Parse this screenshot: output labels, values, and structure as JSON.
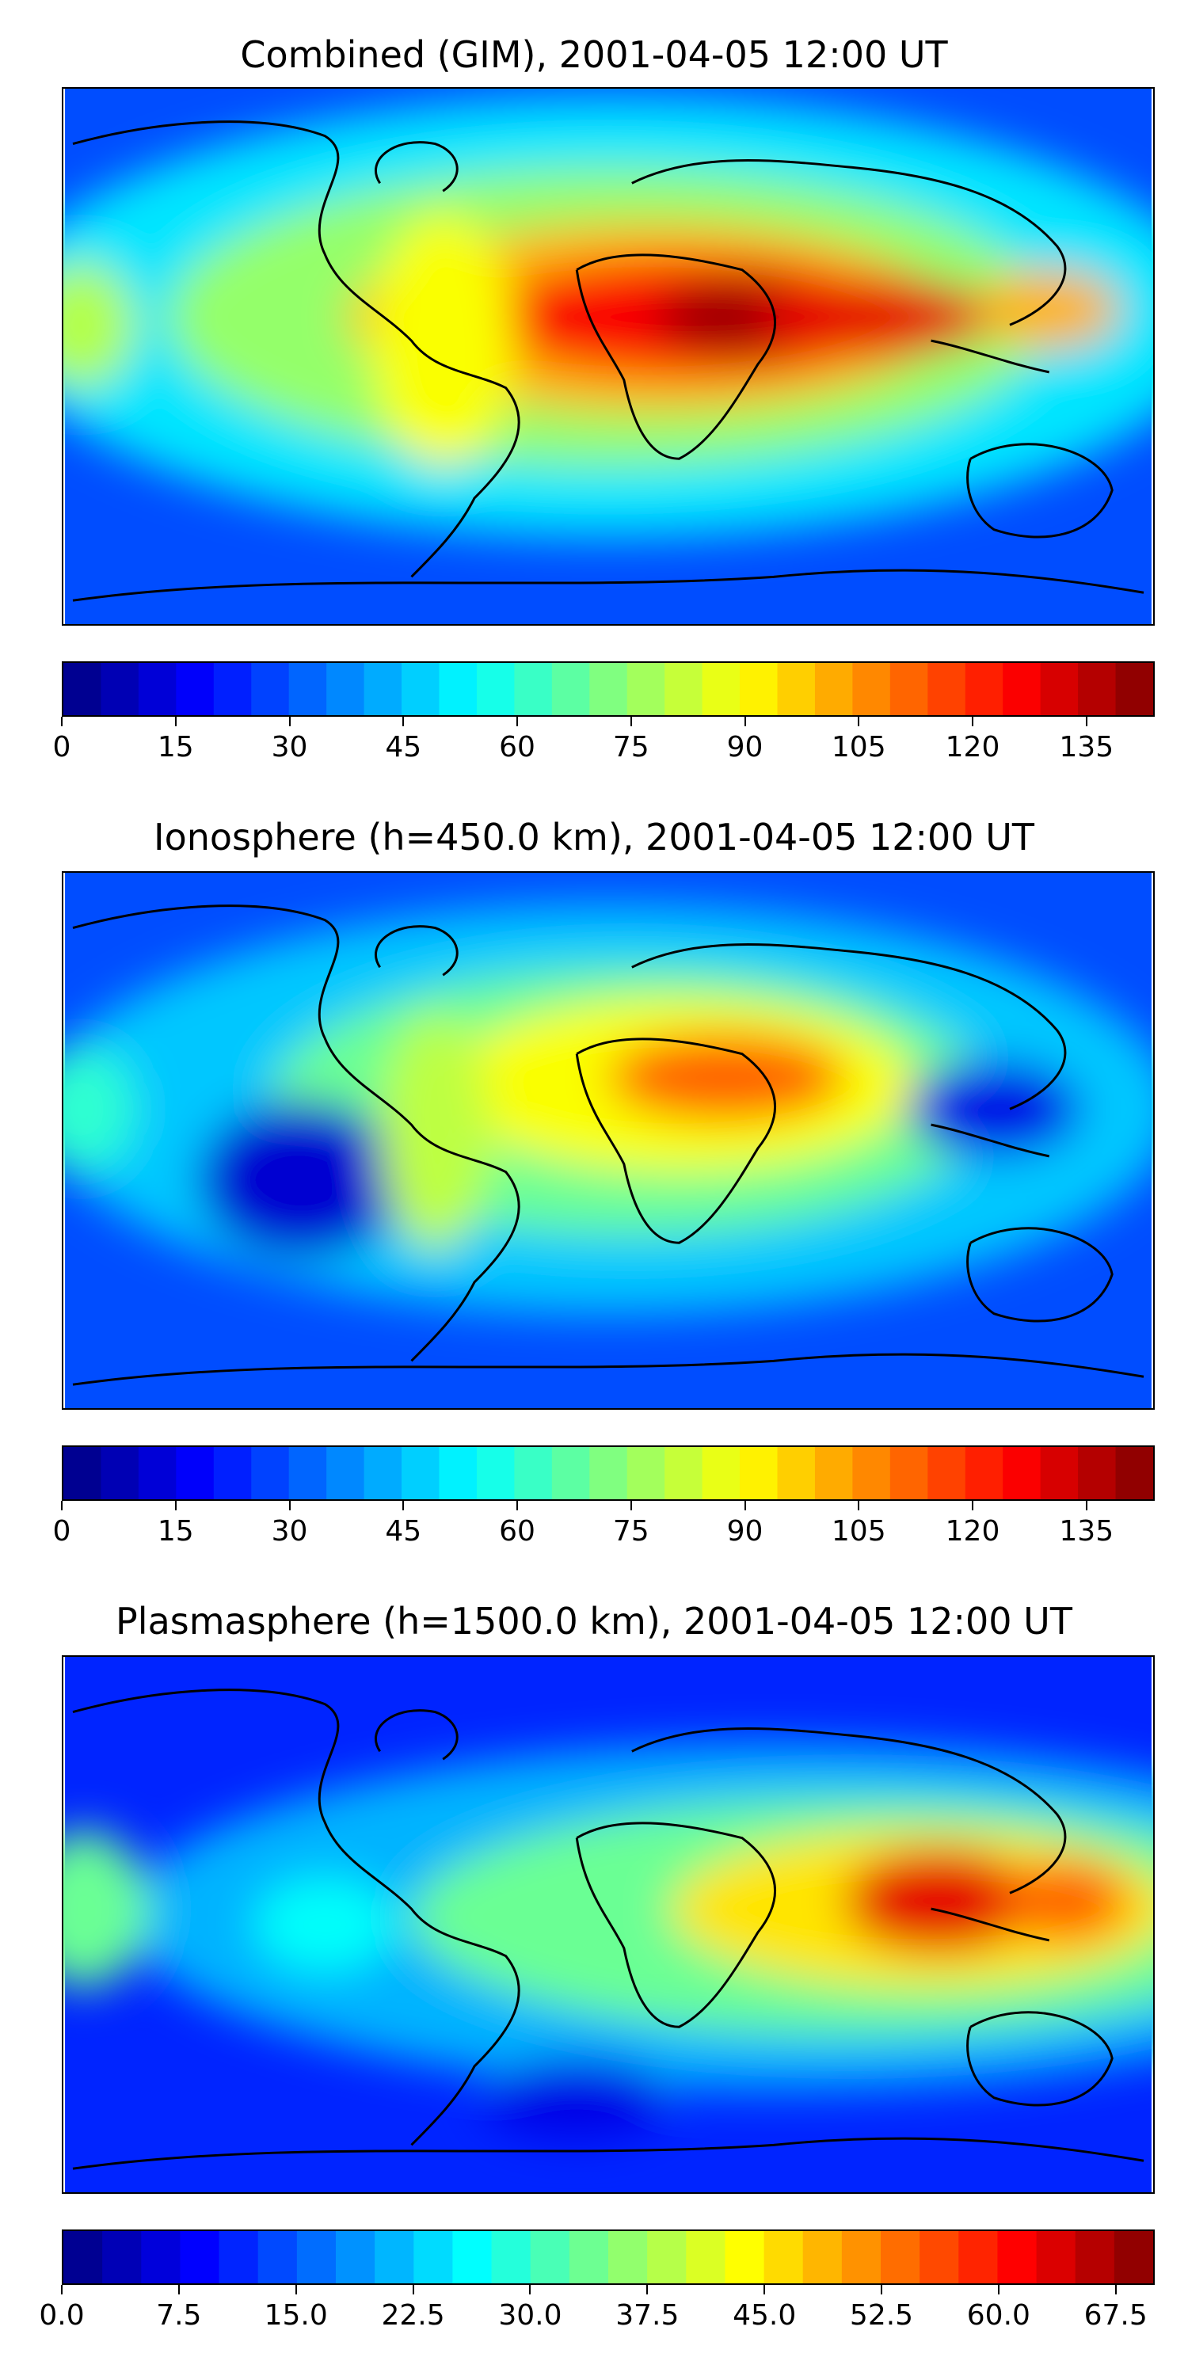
{
  "panels": [
    {
      "title": "Combined (GIM), 2001-04-05 12:00 UT",
      "colorbar": {
        "min": 0,
        "max": 144,
        "levels": 29,
        "tick_labels": [
          "0",
          "15",
          "30",
          "45",
          "60",
          "75",
          "90",
          "105",
          "120",
          "135"
        ],
        "tick_values": [
          0,
          15,
          30,
          45,
          60,
          75,
          90,
          105,
          120,
          135
        ]
      }
    },
    {
      "title": "Ionosphere  (h=450.0 km), 2001-04-05 12:00 UT",
      "colorbar": {
        "min": 0,
        "max": 144,
        "levels": 29,
        "tick_labels": [
          "0",
          "15",
          "30",
          "45",
          "60",
          "75",
          "90",
          "105",
          "120",
          "135"
        ],
        "tick_values": [
          0,
          15,
          30,
          45,
          60,
          75,
          90,
          105,
          120,
          135
        ]
      }
    },
    {
      "title": "Plasmasphere (h=1500.0 km), 2001-04-05 12:00 UT",
      "colorbar": {
        "min": 0,
        "max": 70,
        "levels": 28,
        "tick_labels": [
          "0.0",
          "7.5",
          "15.0",
          "22.5",
          "30.0",
          "37.5",
          "45.0",
          "52.5",
          "60.0",
          "67.5"
        ],
        "tick_values": [
          0,
          7.5,
          15,
          22.5,
          30,
          37.5,
          45,
          52.5,
          60,
          67.5
        ]
      }
    }
  ],
  "colormap": "jet"
}
